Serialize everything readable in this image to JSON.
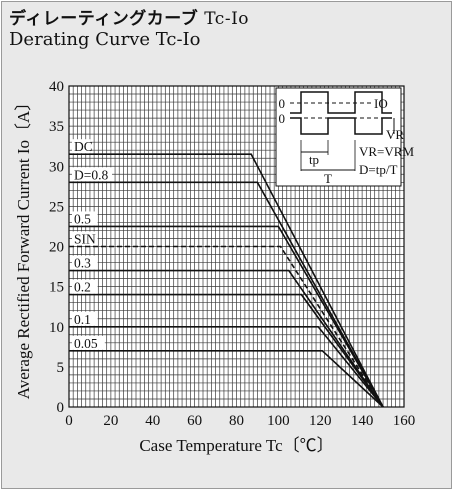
{
  "title_jp": "ディレーティングカーブ",
  "title_jp_sub": "Tc-Io",
  "title_en": "Derating Curve Tc-Io",
  "inset": {
    "io_label": "IO",
    "vr_label": "VR",
    "zero_top": "0",
    "zero_bottom": "0",
    "tp_label": "tp",
    "t_label": "T",
    "eq1": "VR=VRM",
    "eq2": "D=tp/T"
  },
  "chart_data": {
    "type": "line",
    "xlabel": "Case Temperature  Tc〔℃〕",
    "ylabel": "Average Rectified Forward Current  Io〔A〕",
    "xlim": [
      0,
      160
    ],
    "ylim": [
      0,
      40
    ],
    "xticks": [
      0,
      20,
      40,
      60,
      80,
      100,
      120,
      140,
      160
    ],
    "yticks": [
      0,
      5,
      10,
      15,
      20,
      25,
      30,
      35,
      40
    ],
    "grid": true,
    "series": [
      {
        "name": "DC",
        "dashed": false,
        "points": [
          [
            0,
            31.5
          ],
          [
            87,
            31.5
          ],
          [
            150,
            0
          ]
        ]
      },
      {
        "name": "D=0.8",
        "dashed": false,
        "points": [
          [
            0,
            28
          ],
          [
            90,
            28
          ],
          [
            150,
            0
          ]
        ]
      },
      {
        "name": "0.5",
        "dashed": false,
        "points": [
          [
            0,
            22.5
          ],
          [
            100,
            22.5
          ],
          [
            150,
            0
          ]
        ]
      },
      {
        "name": "SIN",
        "dashed": true,
        "points": [
          [
            0,
            20
          ],
          [
            101,
            20
          ],
          [
            150,
            0
          ]
        ]
      },
      {
        "name": "0.3",
        "dashed": false,
        "points": [
          [
            0,
            17
          ],
          [
            105,
            17
          ],
          [
            150,
            0
          ]
        ]
      },
      {
        "name": "0.2",
        "dashed": false,
        "points": [
          [
            0,
            14
          ],
          [
            111,
            14
          ],
          [
            150,
            0
          ]
        ]
      },
      {
        "name": "0.1",
        "dashed": false,
        "points": [
          [
            0,
            10
          ],
          [
            119,
            10
          ],
          [
            150,
            0
          ]
        ]
      },
      {
        "name": "0.05",
        "dashed": false,
        "points": [
          [
            0,
            7
          ],
          [
            121,
            7
          ],
          [
            150,
            0
          ]
        ]
      }
    ]
  }
}
